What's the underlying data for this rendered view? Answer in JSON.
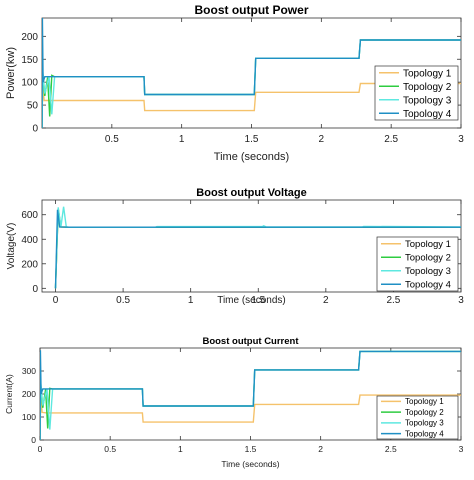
{
  "colors": {
    "topology1": "#f5c26b",
    "topology2": "#2ecc40",
    "topology3": "#5ee8e0",
    "topology4": "#1f8fc4"
  },
  "chart_data": [
    {
      "type": "line",
      "title": "Boost output Power",
      "xlabel": "Time (seconds)",
      "ylabel": "Power(kw)",
      "xlim": [
        0,
        3
      ],
      "ylim": [
        0,
        240
      ],
      "x_ticks": [
        0.5,
        1,
        1.5,
        2,
        2.5,
        3
      ],
      "x_tick_labels": [
        "0.5",
        "1",
        "1.5",
        "2",
        "2.5",
        "3"
      ],
      "y_ticks": [
        0,
        50,
        100,
        150,
        200
      ],
      "y_tick_labels": [
        "0",
        "50",
        "100",
        "150",
        "200"
      ],
      "grid": false,
      "legend": "right",
      "series": [
        {
          "name": "Topology 1",
          "color_key": "topology1",
          "points": [
            [
              0,
              0
            ],
            [
              0.005,
              100
            ],
            [
              0.015,
              60
            ],
            [
              0.05,
              60
            ],
            [
              0.73,
              60
            ],
            [
              0.735,
              38
            ],
            [
              1.52,
              38
            ],
            [
              1.53,
              78
            ],
            [
              2.27,
              78
            ],
            [
              2.28,
              97
            ],
            [
              3,
              97
            ]
          ]
        },
        {
          "name": "Topology 2",
          "color_key": "topology2",
          "points": [
            [
              0,
              0
            ],
            [
              0.005,
              120
            ],
            [
              0.02,
              70
            ],
            [
              0.04,
              110
            ],
            [
              0.055,
              25
            ],
            [
              0.07,
              115
            ],
            [
              0.09,
              112
            ],
            [
              0.73,
              112
            ],
            [
              0.735,
              73
            ],
            [
              1.52,
              73
            ],
            [
              1.53,
              152
            ],
            [
              2.27,
              152
            ],
            [
              2.28,
              192
            ],
            [
              3,
              192
            ]
          ]
        },
        {
          "name": "Topology 3",
          "color_key": "topology3",
          "points": [
            [
              0,
              0
            ],
            [
              0.005,
              125
            ],
            [
              0.02,
              75
            ],
            [
              0.05,
              112
            ],
            [
              0.07,
              30
            ],
            [
              0.09,
              112
            ],
            [
              0.73,
              112
            ],
            [
              0.735,
              73
            ],
            [
              1.52,
              73
            ],
            [
              1.53,
              152
            ],
            [
              2.27,
              152
            ],
            [
              2.28,
              192
            ],
            [
              3,
              192
            ]
          ]
        },
        {
          "name": "Topology 4",
          "color_key": "topology4",
          "points": [
            [
              0,
              0
            ],
            [
              0.003,
              240
            ],
            [
              0.008,
              100
            ],
            [
              0.02,
              112
            ],
            [
              0.73,
              112
            ],
            [
              0.735,
              73
            ],
            [
              1.52,
              73
            ],
            [
              1.53,
              152
            ],
            [
              2.27,
              152
            ],
            [
              2.28,
              192
            ],
            [
              3,
              192
            ]
          ]
        }
      ]
    },
    {
      "type": "line",
      "title": "Boost output Voltage",
      "xlabel": "Time (seconds)",
      "ylabel": "Voltage(V)",
      "xlim": [
        -0.1,
        3
      ],
      "ylim": [
        -30,
        720
      ],
      "x_ticks": [
        0,
        0.5,
        1,
        1.5,
        2,
        2.5,
        3
      ],
      "x_tick_labels": [
        "0",
        "0.5",
        "1",
        "1.5",
        "2",
        "2.5",
        "3"
      ],
      "y_ticks": [
        0,
        200,
        400,
        600
      ],
      "y_tick_labels": [
        "0",
        "200",
        "400",
        "600"
      ],
      "grid": false,
      "legend": "right",
      "series": [
        {
          "name": "Topology 1",
          "color_key": "topology1",
          "points": [
            [
              0,
              0
            ],
            [
              0.02,
              640
            ],
            [
              0.04,
              500
            ],
            [
              0.1,
              498
            ],
            [
              3,
              498
            ]
          ]
        },
        {
          "name": "Topology 2",
          "color_key": "topology2",
          "points": [
            [
              0,
              0
            ],
            [
              0.02,
              650
            ],
            [
              0.04,
              500
            ],
            [
              0.1,
              498
            ],
            [
              3,
              498
            ]
          ]
        },
        {
          "name": "Topology 3",
          "color_key": "topology3",
          "points": [
            [
              0,
              0
            ],
            [
              0.02,
              660
            ],
            [
              0.04,
              500
            ],
            [
              0.06,
              665
            ],
            [
              0.08,
              500
            ],
            [
              0.1,
              498
            ],
            [
              0.74,
              498
            ],
            [
              0.75,
              503
            ],
            [
              1.53,
              503
            ],
            [
              1.54,
              510
            ],
            [
              1.56,
              500
            ],
            [
              2.27,
              500
            ],
            [
              2.28,
              505
            ],
            [
              3,
              500
            ]
          ]
        },
        {
          "name": "Topology 4",
          "color_key": "topology4",
          "points": [
            [
              0,
              0
            ],
            [
              0.015,
              640
            ],
            [
              0.03,
              500
            ],
            [
              0.1,
              498
            ],
            [
              3,
              498
            ]
          ]
        }
      ]
    },
    {
      "type": "line",
      "title": "Boost output Current",
      "xlabel": "Time (seconds)",
      "ylabel": "Current(A)",
      "xlim": [
        0,
        3
      ],
      "ylim": [
        0,
        400
      ],
      "x_ticks": [
        0,
        0.5,
        1,
        1.5,
        2,
        2.5,
        3
      ],
      "x_tick_labels": [
        "0",
        "0.5",
        "1",
        "1.5",
        "2",
        "2.5",
        "3"
      ],
      "y_ticks": [
        0,
        100,
        200,
        300
      ],
      "y_tick_labels": [
        "0",
        "100",
        "200",
        "300"
      ],
      "grid": false,
      "legend": "right",
      "series": [
        {
          "name": "Topology 1",
          "color_key": "topology1",
          "points": [
            [
              0,
              0
            ],
            [
              0.005,
              200
            ],
            [
              0.015,
              120
            ],
            [
              0.05,
              118
            ],
            [
              0.73,
              118
            ],
            [
              0.735,
              78
            ],
            [
              1.52,
              78
            ],
            [
              1.53,
              155
            ],
            [
              2.27,
              155
            ],
            [
              2.28,
              195
            ],
            [
              3,
              195
            ]
          ]
        },
        {
          "name": "Topology 2",
          "color_key": "topology2",
          "points": [
            [
              0,
              0
            ],
            [
              0.005,
              240
            ],
            [
              0.02,
              140
            ],
            [
              0.04,
              220
            ],
            [
              0.055,
              50
            ],
            [
              0.07,
              225
            ],
            [
              0.09,
              222
            ],
            [
              0.73,
              222
            ],
            [
              0.735,
              148
            ],
            [
              1.52,
              148
            ],
            [
              1.53,
              305
            ],
            [
              2.27,
              305
            ],
            [
              2.28,
              385
            ],
            [
              3,
              385
            ]
          ]
        },
        {
          "name": "Topology 3",
          "color_key": "topology3",
          "points": [
            [
              0,
              0
            ],
            [
              0.005,
              250
            ],
            [
              0.02,
              150
            ],
            [
              0.05,
              222
            ],
            [
              0.07,
              45
            ],
            [
              0.09,
              222
            ],
            [
              0.73,
              222
            ],
            [
              0.735,
              148
            ],
            [
              1.52,
              148
            ],
            [
              1.53,
              305
            ],
            [
              2.27,
              305
            ],
            [
              2.28,
              385
            ],
            [
              3,
              385
            ]
          ]
        },
        {
          "name": "Topology 4",
          "color_key": "topology4",
          "points": [
            [
              0,
              0
            ],
            [
              0.003,
              390
            ],
            [
              0.008,
              200
            ],
            [
              0.02,
              222
            ],
            [
              0.73,
              222
            ],
            [
              0.735,
              148
            ],
            [
              1.52,
              148
            ],
            [
              1.53,
              305
            ],
            [
              2.27,
              305
            ],
            [
              2.28,
              385
            ],
            [
              3,
              385
            ]
          ]
        }
      ]
    }
  ]
}
